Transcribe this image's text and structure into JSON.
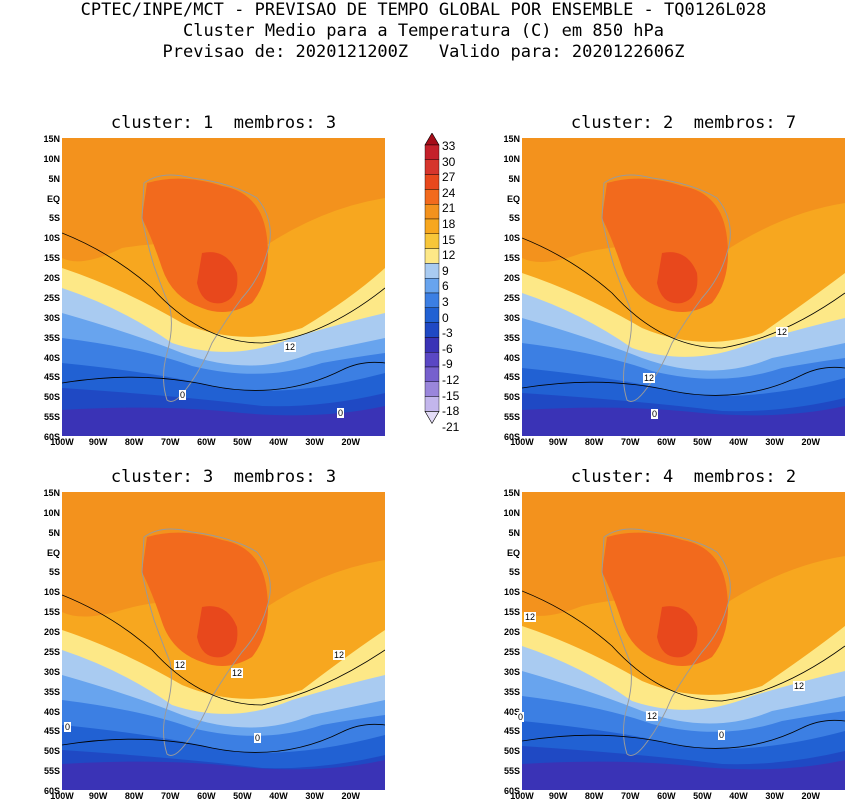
{
  "header": {
    "line1": "CPTEC/INPE/MCT - PREVISAO DE TEMPO GLOBAL POR ENSEMBLE - TQ0126L028",
    "line2": "Cluster Medio para a Temperatura (C) em 850 hPa",
    "line3": "Previsao de: 2020121200Z   Valido para: 2020122606Z"
  },
  "panels": [
    {
      "title": "cluster: 1  membros: 3"
    },
    {
      "title": "cluster: 2  membros: 7"
    },
    {
      "title": "cluster: 3  membros: 3"
    },
    {
      "title": "cluster: 4  membros: 2"
    }
  ],
  "axes": {
    "lat_labels": [
      "15N",
      "10N",
      "5N",
      "EQ",
      "5S",
      "10S",
      "15S",
      "20S",
      "25S",
      "30S",
      "35S",
      "40S",
      "45S",
      "50S",
      "55S",
      "60S"
    ],
    "lon_labels": [
      "100W",
      "90W",
      "80W",
      "70W",
      "60W",
      "50W",
      "40W",
      "30W",
      "20W"
    ]
  },
  "colorbar": {
    "labels": [
      "33",
      "30",
      "27",
      "24",
      "21",
      "18",
      "15",
      "12",
      "9",
      "6",
      "3",
      "0",
      "-3",
      "-6",
      "-9",
      "-12",
      "-15",
      "-18",
      "-21"
    ],
    "colors": [
      "#a50d19",
      "#c4202a",
      "#d6352c",
      "#e8481c",
      "#f26a1d",
      "#f3921d",
      "#f7a71f",
      "#f7c63a",
      "#fde887",
      "#a9cbf1",
      "#68a4ee",
      "#3c7fe3",
      "#2161d3",
      "#1f49c4",
      "#3a33b6",
      "#5a47c4",
      "#7660cd",
      "#9a86db",
      "#c3b6ec",
      "#e3dcf7"
    ]
  },
  "contour_labels": [
    {
      "panel": 0,
      "values": [
        "12",
        "0",
        "0"
      ]
    },
    {
      "panel": 1,
      "values": [
        "12",
        "12",
        "0"
      ]
    },
    {
      "panel": 2,
      "values": [
        "12",
        "12",
        "12",
        "0",
        "0"
      ]
    },
    {
      "panel": 3,
      "values": [
        "12",
        "12",
        "12",
        "0",
        "0"
      ]
    }
  ]
}
